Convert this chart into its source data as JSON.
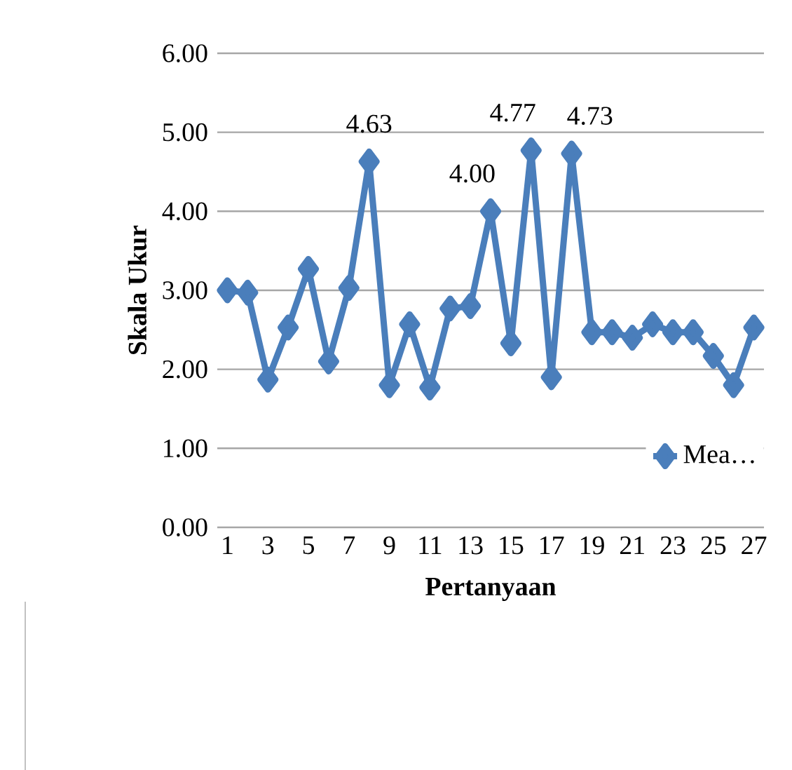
{
  "chart_data": {
    "type": "line",
    "xlabel": "Pertanyaan",
    "ylabel": "Skala Ukur",
    "categories": [
      "1",
      null,
      "3",
      null,
      "5",
      null,
      "7",
      null,
      "9",
      null,
      "11",
      null,
      "13",
      null,
      "15",
      null,
      "17",
      null,
      "19",
      null,
      "21",
      null,
      "23",
      null,
      "25",
      null,
      "27"
    ],
    "series": [
      {
        "name": "Mea…",
        "color": "#4a7ebb",
        "values": [
          3.0,
          2.97,
          1.87,
          2.53,
          3.27,
          2.1,
          3.03,
          4.63,
          1.8,
          2.57,
          1.77,
          2.77,
          2.8,
          4.0,
          2.33,
          4.77,
          1.9,
          4.73,
          2.47,
          2.47,
          2.4,
          2.57,
          2.47,
          2.47,
          2.17,
          1.8,
          2.53
        ],
        "value_labels": [
          null,
          null,
          null,
          null,
          null,
          null,
          null,
          "4.63",
          null,
          null,
          null,
          null,
          null,
          "4.00",
          null,
          "4.77",
          null,
          "4.73",
          null,
          null,
          null,
          null,
          null,
          null,
          null,
          null,
          null
        ]
      }
    ],
    "ylim": [
      0,
      6
    ],
    "yticks": [
      {
        "value": 0,
        "label": "0.00"
      },
      {
        "value": 1,
        "label": "1.00"
      },
      {
        "value": 2,
        "label": "2.00"
      },
      {
        "value": 3,
        "label": "3.00"
      },
      {
        "value": 4,
        "label": "4.00"
      },
      {
        "value": 5,
        "label": "5.00"
      },
      {
        "value": 6,
        "label": "6.00"
      }
    ],
    "grid": "y",
    "legend": "bottom right",
    "marker": "diamond",
    "line_style": "solid"
  }
}
